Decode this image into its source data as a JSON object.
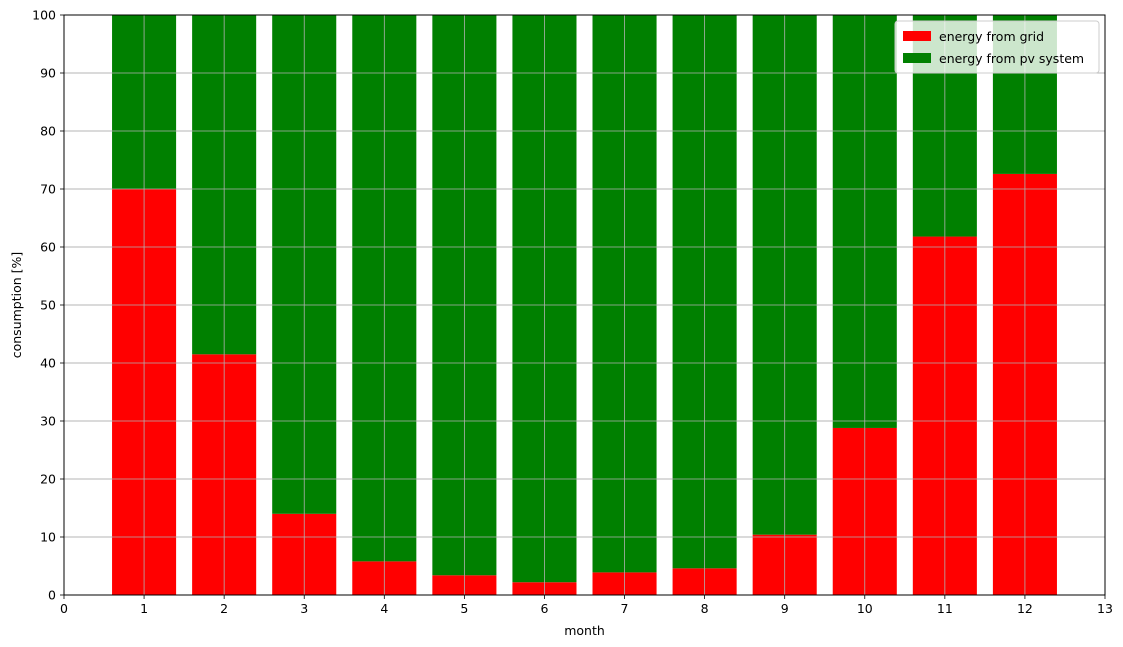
{
  "chart_data": {
    "type": "bar",
    "stacked": true,
    "categories": [
      1,
      2,
      3,
      4,
      5,
      6,
      7,
      8,
      9,
      10,
      11,
      12
    ],
    "series": [
      {
        "name": "energy from grid",
        "color": "#ff0000",
        "values": [
          70,
          41.5,
          14,
          5.8,
          3.4,
          2.2,
          3.9,
          4.6,
          10.4,
          28.8,
          61.8,
          72.6
        ]
      },
      {
        "name": "energy from pv system",
        "color": "#008000",
        "values": [
          30,
          58.5,
          86,
          94.2,
          96.6,
          97.8,
          96.1,
          95.4,
          89.6,
          71.2,
          38.2,
          27.4
        ]
      }
    ],
    "xlabel": "month",
    "ylabel": "consumption [%]",
    "xlim": [
      0,
      13
    ],
    "ylim": [
      0,
      100
    ],
    "xticks": [
      "0",
      "1",
      "2",
      "3",
      "4",
      "5",
      "6",
      "7",
      "8",
      "9",
      "10",
      "11",
      "12",
      "13"
    ],
    "yticks": [
      "0",
      "10",
      "20",
      "30",
      "40",
      "50",
      "60",
      "70",
      "80",
      "90",
      "100"
    ],
    "grid": true,
    "legend_position": "top-right"
  }
}
